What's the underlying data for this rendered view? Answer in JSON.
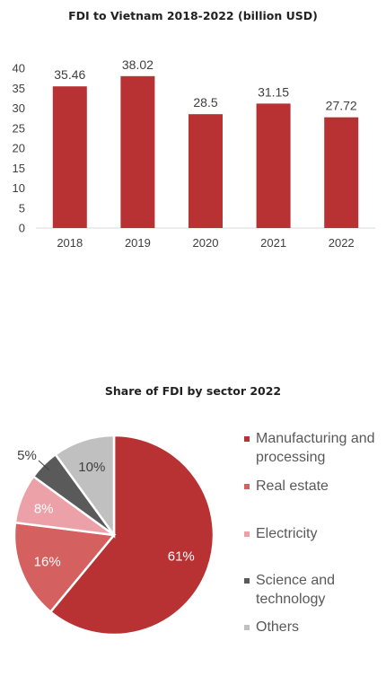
{
  "bar_chart_title": "FDI to Vietnam 2018-2022 (billion USD)",
  "pie_chart_title": "Share of FDI by sector 2022",
  "legend": [
    {
      "label": "Manufacturing and processing",
      "color": "#b83234"
    },
    {
      "label": "Real estate",
      "color": "#d4605f"
    },
    {
      "label": "Electricity",
      "color": "#eba1a7"
    },
    {
      "label": "Science and technology",
      "color": "#5a5a5a"
    },
    {
      "label": "Others",
      "color": "#c0c0c0"
    }
  ],
  "chart_data": [
    {
      "type": "bar",
      "title": "FDI to Vietnam 2018-2022 (billion USD)",
      "categories": [
        "2018",
        "2019",
        "2020",
        "2021",
        "2022"
      ],
      "values": [
        35.46,
        38.02,
        28.5,
        31.15,
        27.72
      ],
      "data_labels": [
        "35.46",
        "38.02",
        "28.5",
        "31.15",
        "27.72"
      ],
      "ylim": [
        0,
        40
      ],
      "yticks": [
        0,
        5,
        10,
        15,
        20,
        25,
        30,
        35,
        40
      ],
      "bar_color": "#b83234",
      "grid": false
    },
    {
      "type": "pie",
      "title": "Share of FDI by sector 2022",
      "labels": [
        "Manufacturing and processing",
        "Real estate",
        "Electricity",
        "Science and technology",
        "Others"
      ],
      "values": [
        61,
        16,
        8,
        5,
        10
      ],
      "data_labels": [
        "61%",
        "16%",
        "8%",
        "5%",
        "10%"
      ],
      "colors": [
        "#b83234",
        "#d4605f",
        "#eba1a7",
        "#5a5a5a",
        "#c0c0c0"
      ],
      "legend_position": "right"
    }
  ]
}
